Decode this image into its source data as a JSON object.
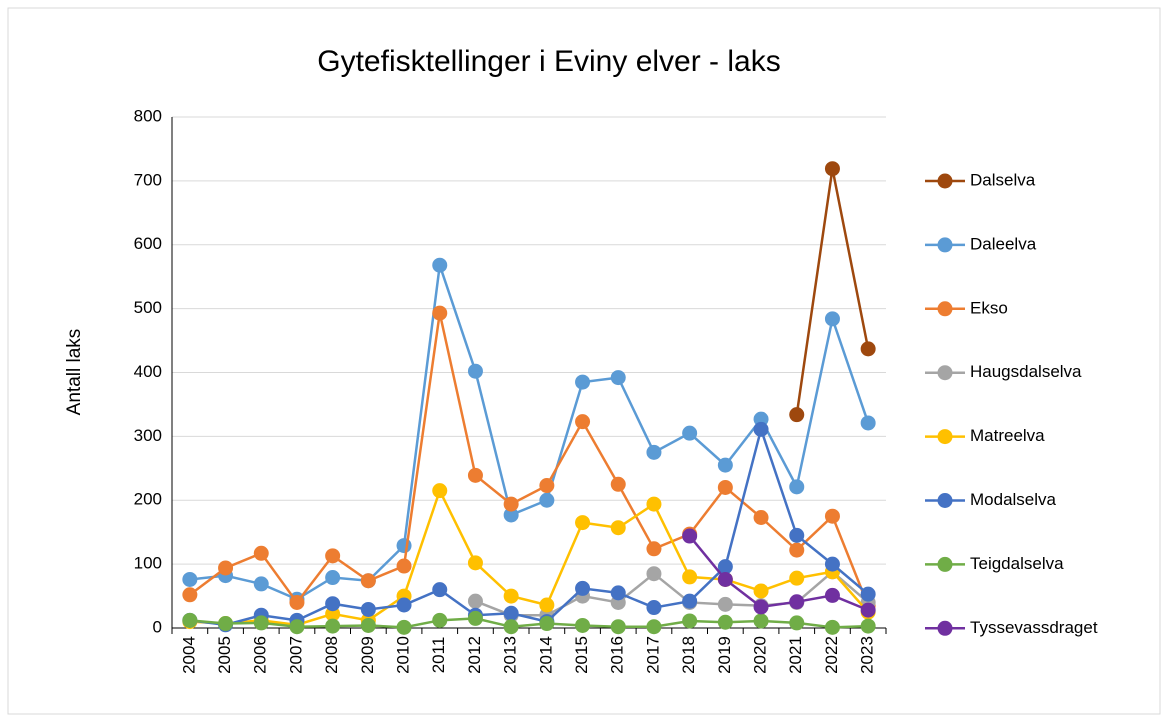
{
  "chart_data": {
    "type": "line",
    "title": "Gytefisktellinger i Eviny elver - laks",
    "y_label": "Antall laks",
    "categories": [
      "2004",
      "2005",
      "2006",
      "2007",
      "2008",
      "2009",
      "2010",
      "2011",
      "2012",
      "2013",
      "2014",
      "2015",
      "2016",
      "2017",
      "2018",
      "2019",
      "2020",
      "2021",
      "2022",
      "2023"
    ],
    "ylim": [
      0,
      800
    ],
    "yticks": [
      0,
      100,
      200,
      300,
      400,
      500,
      600,
      700,
      800
    ],
    "grid": true,
    "legend": "right",
    "series": [
      {
        "name": "Dalselva",
        "color": "#9e480e",
        "values": [
          null,
          null,
          null,
          null,
          null,
          null,
          null,
          null,
          null,
          null,
          null,
          null,
          null,
          null,
          null,
          null,
          null,
          334,
          719,
          437
        ]
      },
      {
        "name": "Daleelva",
        "color": "#5b9bd5",
        "values": [
          76,
          82,
          69,
          45,
          79,
          74,
          129,
          568,
          402,
          177,
          200,
          385,
          392,
          275,
          305,
          255,
          327,
          221,
          484,
          321
        ]
      },
      {
        "name": "Ekso",
        "color": "#ed7d31",
        "values": [
          52,
          94,
          117,
          40,
          113,
          74,
          97,
          493,
          239,
          194,
          223,
          323,
          225,
          124,
          147,
          220,
          173,
          122,
          175,
          35
        ]
      },
      {
        "name": "Haugsdalselva",
        "color": "#a5a5a5",
        "values": [
          null,
          null,
          null,
          null,
          null,
          null,
          null,
          null,
          42,
          20,
          20,
          50,
          40,
          85,
          40,
          37,
          35,
          40,
          88,
          40
        ]
      },
      {
        "name": "Matreelva",
        "color": "#ffc000",
        "values": [
          10,
          7,
          12,
          5,
          22,
          12,
          50,
          215,
          102,
          50,
          36,
          165,
          157,
          194,
          80,
          76,
          58,
          78,
          88,
          25
        ]
      },
      {
        "name": "Modalselva",
        "color": "#4472c4",
        "values": [
          12,
          5,
          20,
          12,
          38,
          29,
          36,
          60,
          20,
          23,
          10,
          62,
          55,
          32,
          42,
          96,
          311,
          145,
          100,
          53
        ]
      },
      {
        "name": "Teigdalselva",
        "color": "#70ad47",
        "values": [
          12,
          7,
          8,
          2,
          3,
          4,
          1,
          12,
          15,
          2,
          7,
          4,
          2,
          2,
          11,
          9,
          11,
          8,
          1,
          3
        ]
      },
      {
        "name": "Tyssevassdraget",
        "color": "#7030a0",
        "values": [
          null,
          null,
          null,
          null,
          null,
          null,
          null,
          null,
          null,
          null,
          null,
          null,
          null,
          null,
          144,
          76,
          33,
          41,
          51,
          28
        ]
      }
    ]
  }
}
